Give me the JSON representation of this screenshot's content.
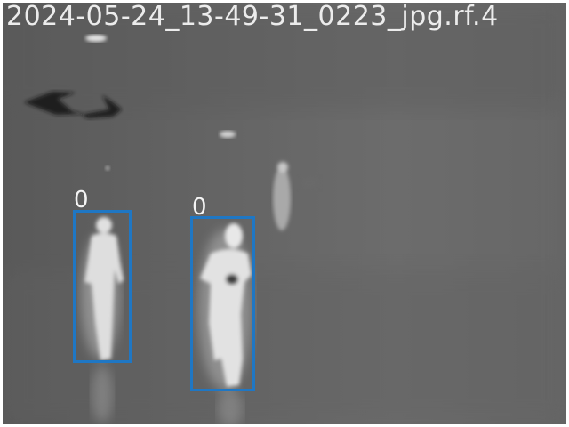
{
  "image": {
    "filename_overlay": "2024-05-24_13-49-31_0223_jpg.rf.4",
    "box_color": "#1f77c4"
  },
  "detections": [
    {
      "label": "0"
    },
    {
      "label": "0"
    }
  ]
}
